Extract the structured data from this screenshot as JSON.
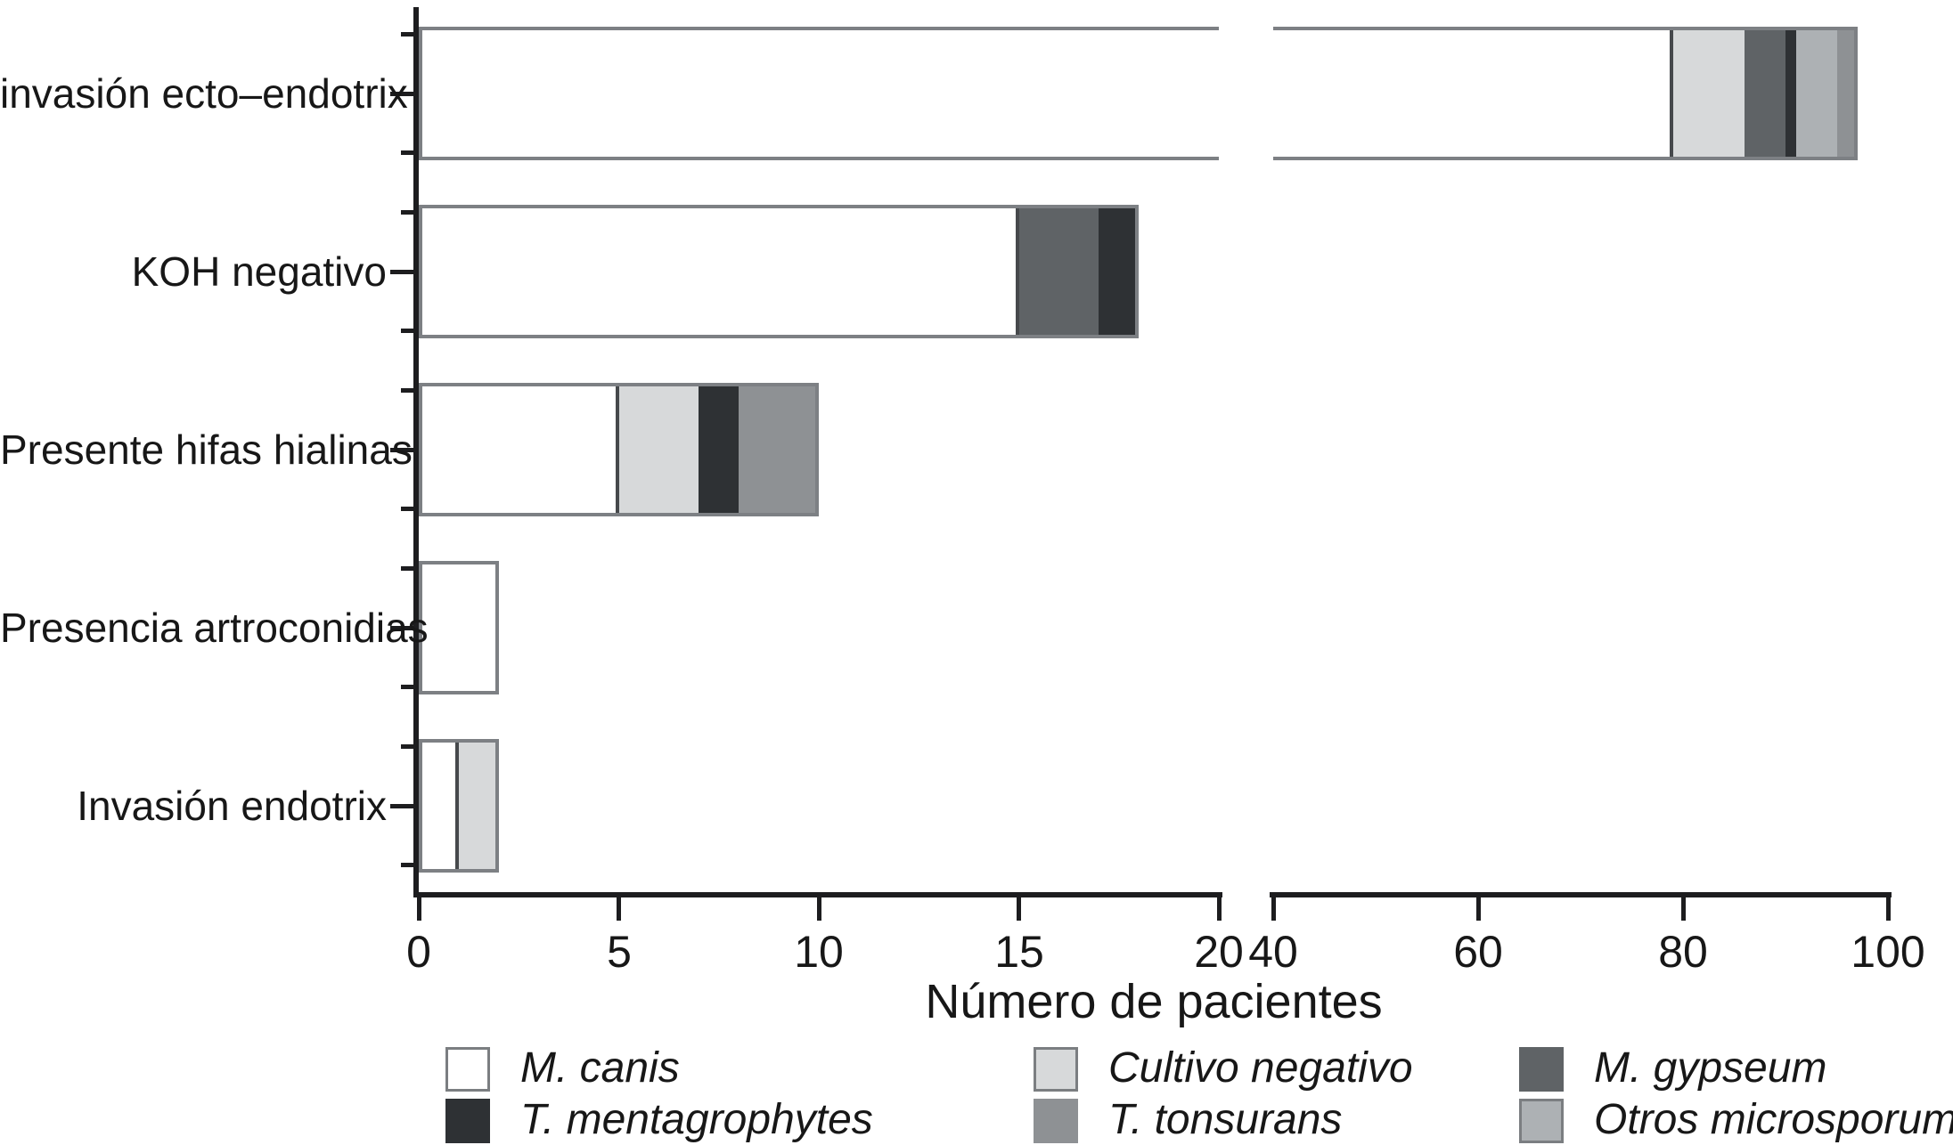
{
  "chart_data": {
    "type": "bar",
    "orientation": "horizontal",
    "title": "",
    "xlabel": "Número de pacientes",
    "ylabel": "",
    "grid": false,
    "legend_position": "bottom",
    "categories": [
      "invasión ecto–endotrix",
      "KOH negativo",
      "Presente hifas hialinas",
      "Presencia artroconidias",
      "Invasión endotrix"
    ],
    "series": [
      {
        "name": "M. canis",
        "color": "#ffffff",
        "values": [
          79,
          15,
          5,
          2,
          1
        ]
      },
      {
        "name": "Cultivo negativo",
        "color": "#d7d9da",
        "values": [
          7,
          0,
          2,
          0,
          1
        ]
      },
      {
        "name": "M. gypseum",
        "color": "#5f6366",
        "values": [
          4,
          2,
          0,
          0,
          0
        ]
      },
      {
        "name": "T. mentagrophytes",
        "color": "#2e3134",
        "values": [
          1,
          1,
          1,
          0,
          0
        ]
      },
      {
        "name": "Otros microsporum",
        "color": "#adb1b4",
        "values": [
          4,
          0,
          0,
          0,
          0
        ]
      },
      {
        "name": "T. tonsurans",
        "color": "#8e9194",
        "values": [
          2,
          0,
          2,
          0,
          0
        ]
      }
    ],
    "x_axis": {
      "break": true,
      "left_range": [
        0,
        20
      ],
      "right_range": [
        40,
        100
      ],
      "left_ticks": [
        0,
        5,
        10,
        15,
        20
      ],
      "right_ticks": [
        40,
        60,
        80,
        100
      ]
    },
    "legend_order": [
      "M. canis",
      "T. mentagrophytes",
      "Cultivo negativo",
      "T. tonsurans",
      "M. gypseum",
      "Otros microsporum"
    ],
    "axis_color": "#1d1d1f",
    "bar_outline_color": "#7d8084",
    "white_segment_edge_color": "#46494c"
  }
}
